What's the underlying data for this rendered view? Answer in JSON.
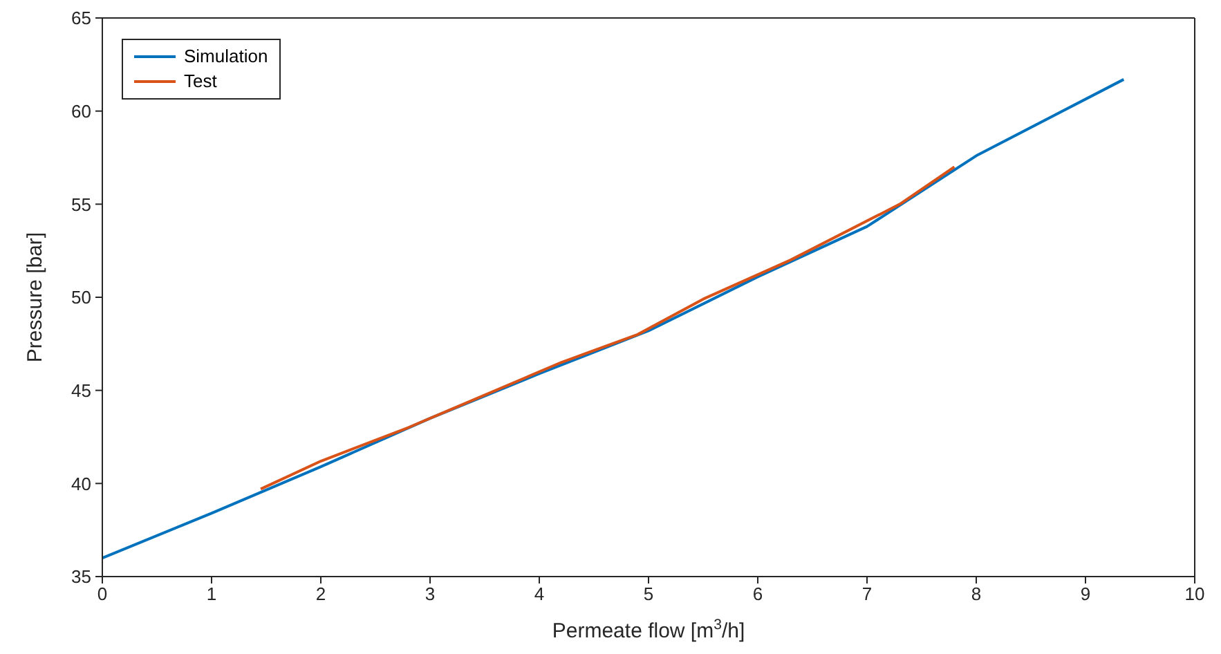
{
  "chart_data": {
    "type": "line",
    "xlabel": "Permeate flow [m$^{3}$/h]",
    "ylabel": "Pressure [bar]",
    "xlim": [
      0,
      10
    ],
    "ylim": [
      35,
      65
    ],
    "xticks": [
      0,
      1,
      2,
      3,
      4,
      5,
      6,
      7,
      8,
      9,
      10
    ],
    "yticks": [
      35,
      40,
      45,
      50,
      55,
      60,
      65
    ],
    "legend": "top left",
    "marker": "none",
    "line_style": "solid",
    "series": [
      {
        "name": "Simulation",
        "color": "#0072bd",
        "x": [
          0,
          1,
          2,
          3,
          4,
          5,
          6,
          7,
          8,
          9.35
        ],
        "values": [
          36,
          38.4,
          40.9,
          43.5,
          45.9,
          48.2,
          51.1,
          53.8,
          57.6,
          61.7
        ]
      },
      {
        "name": "Test",
        "color": "#d95319",
        "x": [
          1.45,
          2,
          2.8,
          3.2,
          4.2,
          4.9,
          5.5,
          6.3,
          7.3,
          7.8
        ],
        "values": [
          39.7,
          41.2,
          43.0,
          44.0,
          46.5,
          48.0,
          49.9,
          52.0,
          55.0,
          57.0
        ]
      }
    ]
  }
}
